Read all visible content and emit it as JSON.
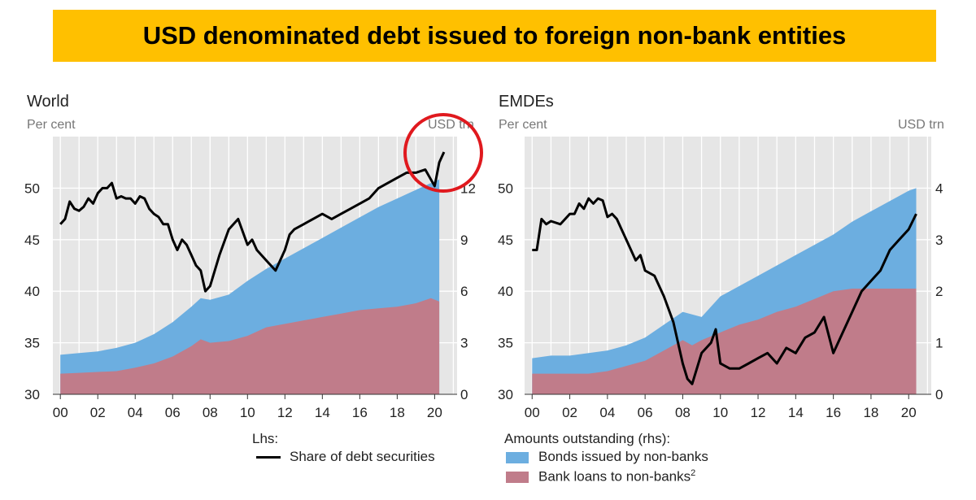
{
  "banner": {
    "title": "USD denominated debt issued to foreign non-bank entities"
  },
  "panels": {
    "world": {
      "title": "World",
      "lhs_unit": "Per cent",
      "rhs_unit": "USD trn"
    },
    "emdes": {
      "title": "EMDEs",
      "lhs_unit": "Per cent",
      "rhs_unit": "USD trn"
    }
  },
  "legend": {
    "lhs_header": "Lhs:",
    "line_label": "Share of debt securities",
    "rhs_header": "Amounts outstanding (rhs):",
    "bonds_label": "Bonds issued by non-banks",
    "loans_label": "Bank loans to non-banks",
    "loans_superscript": "2"
  },
  "colors": {
    "banner": "#FFC000",
    "bonds": "#6CAEE0",
    "loans": "#C07C8A",
    "line": "#000000",
    "circle": "#E0191E",
    "plot_bg": "#E6E6E6"
  },
  "chart_data": [
    {
      "type": "area",
      "title": "World",
      "ylabel_left": "Per cent",
      "ylabel_right": "USD trn",
      "x_ticks": [
        "00",
        "02",
        "04",
        "06",
        "08",
        "10",
        "12",
        "14",
        "16",
        "18",
        "20"
      ],
      "xlim": [
        1999.6,
        2021.2
      ],
      "ylim_left": [
        30,
        55
      ],
      "yticks_left": [
        30,
        35,
        40,
        45,
        50
      ],
      "ylim_right": [
        0,
        15
      ],
      "yticks_right": [
        0,
        3,
        6,
        9,
        12
      ],
      "grid": true,
      "annotation": "red circle highlighting latest line values",
      "series": [
        {
          "name": "Bank loans to non-banks",
          "axis": "right",
          "kind": "stacked_area",
          "x": [
            2000,
            2001,
            2002,
            2003,
            2004,
            2005,
            2006,
            2007,
            2007.5,
            2008,
            2009,
            2010,
            2011,
            2012,
            2013,
            2014,
            2015,
            2016,
            2017,
            2018,
            2019,
            2019.8,
            2020.25
          ],
          "y": [
            1.2,
            1.25,
            1.3,
            1.35,
            1.55,
            1.8,
            2.2,
            2.8,
            3.2,
            3.0,
            3.1,
            3.4,
            3.9,
            4.1,
            4.3,
            4.5,
            4.7,
            4.9,
            5.0,
            5.1,
            5.3,
            5.6,
            5.4
          ]
        },
        {
          "name": "Bonds issued by non-banks",
          "axis": "right",
          "kind": "stacked_area_total",
          "x": [
            2000,
            2001,
            2002,
            2003,
            2004,
            2005,
            2006,
            2007,
            2007.5,
            2008,
            2009,
            2010,
            2011,
            2012,
            2013,
            2014,
            2015,
            2016,
            2017,
            2018,
            2019,
            2019.8,
            2020.25
          ],
          "y": [
            2.3,
            2.4,
            2.5,
            2.7,
            3.0,
            3.5,
            4.2,
            5.1,
            5.6,
            5.5,
            5.8,
            6.6,
            7.3,
            7.9,
            8.5,
            9.1,
            9.7,
            10.3,
            10.9,
            11.4,
            11.9,
            12.3,
            12.5
          ]
        },
        {
          "name": "Share of debt securities",
          "axis": "left",
          "kind": "line",
          "x": [
            2000,
            2000.25,
            2000.5,
            2000.75,
            2001,
            2001.25,
            2001.5,
            2001.75,
            2002,
            2002.25,
            2002.5,
            2002.75,
            2003,
            2003.25,
            2003.5,
            2003.75,
            2004,
            2004.25,
            2004.5,
            2004.75,
            2005,
            2005.25,
            2005.5,
            2005.75,
            2006,
            2006.25,
            2006.5,
            2006.75,
            2007,
            2007.25,
            2007.5,
            2007.75,
            2008,
            2008.5,
            2009,
            2009.5,
            2010,
            2010.25,
            2010.5,
            2011,
            2011.5,
            2012,
            2012.25,
            2012.5,
            2013,
            2013.5,
            2014,
            2014.5,
            2015,
            2015.5,
            2016,
            2016.5,
            2017,
            2017.5,
            2018,
            2018.5,
            2019,
            2019.5,
            2019.75,
            2020,
            2020.25,
            2020.5
          ],
          "y": [
            46.5,
            47.0,
            48.7,
            48.0,
            47.8,
            48.2,
            49.0,
            48.5,
            49.5,
            50.0,
            50.0,
            50.5,
            49.0,
            49.2,
            49.0,
            49.0,
            48.5,
            49.2,
            49.0,
            48.0,
            47.5,
            47.2,
            46.5,
            46.5,
            45.0,
            44.0,
            45.0,
            44.5,
            43.5,
            42.5,
            42.0,
            40.0,
            40.5,
            43.5,
            46.0,
            47.0,
            44.5,
            45.0,
            44.0,
            43.0,
            42.0,
            44.0,
            45.5,
            46.0,
            46.5,
            47.0,
            47.5,
            47.0,
            47.5,
            48.0,
            48.5,
            49.0,
            50.0,
            50.5,
            51.0,
            51.5,
            51.5,
            51.8,
            51.0,
            50.2,
            52.5,
            53.5
          ]
        }
      ]
    },
    {
      "type": "area",
      "title": "EMDEs",
      "ylabel_left": "Per cent",
      "ylabel_right": "USD trn",
      "x_ticks": [
        "00",
        "02",
        "04",
        "06",
        "08",
        "10",
        "12",
        "14",
        "16",
        "18",
        "20"
      ],
      "xlim": [
        1999.6,
        2021.2
      ],
      "ylim_left": [
        30,
        55
      ],
      "yticks_left": [
        30,
        35,
        40,
        45,
        50
      ],
      "ylim_right": [
        0,
        5
      ],
      "yticks_right": [
        0,
        1,
        2,
        3,
        4
      ],
      "grid": true,
      "series": [
        {
          "name": "Bank loans to non-banks",
          "axis": "right",
          "kind": "stacked_area",
          "x": [
            2000,
            2001,
            2002,
            2003,
            2004,
            2005,
            2006,
            2007,
            2008,
            2008.5,
            2009,
            2010,
            2011,
            2012,
            2013,
            2014,
            2015,
            2016,
            2017,
            2018,
            2019,
            2020,
            2020.4
          ],
          "y": [
            0.4,
            0.4,
            0.4,
            0.4,
            0.45,
            0.55,
            0.65,
            0.85,
            1.05,
            0.95,
            1.05,
            1.2,
            1.35,
            1.45,
            1.6,
            1.7,
            1.85,
            2.0,
            2.05,
            2.05,
            2.05,
            2.05,
            2.05
          ]
        },
        {
          "name": "Bonds issued by non-banks",
          "axis": "right",
          "kind": "stacked_area_total",
          "x": [
            2000,
            2001,
            2002,
            2003,
            2004,
            2005,
            2006,
            2007,
            2008,
            2008.5,
            2009,
            2010,
            2011,
            2012,
            2013,
            2014,
            2015,
            2016,
            2017,
            2018,
            2019,
            2020,
            2020.4
          ],
          "y": [
            0.7,
            0.75,
            0.75,
            0.8,
            0.85,
            0.95,
            1.1,
            1.35,
            1.6,
            1.55,
            1.5,
            1.9,
            2.1,
            2.3,
            2.5,
            2.7,
            2.9,
            3.1,
            3.35,
            3.55,
            3.75,
            3.95,
            4.0
          ]
        },
        {
          "name": "Share of debt securities",
          "axis": "left",
          "kind": "line",
          "x": [
            2000,
            2000.25,
            2000.5,
            2000.75,
            2001,
            2001.5,
            2002,
            2002.25,
            2002.5,
            2002.75,
            2003,
            2003.25,
            2003.5,
            2003.75,
            2004,
            2004.25,
            2004.5,
            2004.75,
            2005,
            2005.25,
            2005.5,
            2005.75,
            2006,
            2006.5,
            2007,
            2007.5,
            2008,
            2008.25,
            2008.5,
            2009,
            2009.5,
            2009.75,
            2010,
            2010.5,
            2011,
            2011.5,
            2012,
            2012.5,
            2013,
            2013.5,
            2014,
            2014.5,
            2015,
            2015.5,
            2016,
            2016.5,
            2017,
            2017.5,
            2018,
            2018.5,
            2019,
            2019.5,
            2020,
            2020.4
          ],
          "y": [
            44.0,
            44.0,
            47.0,
            46.5,
            46.8,
            46.5,
            47.5,
            47.5,
            48.5,
            48.0,
            49.0,
            48.5,
            49.0,
            48.8,
            47.2,
            47.5,
            47.0,
            46.0,
            45.0,
            44.0,
            43.0,
            43.5,
            42.0,
            41.5,
            39.5,
            37.0,
            33.0,
            31.5,
            31.0,
            34.0,
            35.0,
            36.3,
            33.0,
            32.5,
            32.5,
            33.0,
            33.5,
            34.0,
            33.0,
            34.5,
            34.0,
            35.5,
            36.0,
            37.5,
            34.0,
            36.0,
            38.0,
            40.0,
            41.0,
            42.0,
            44.0,
            45.0,
            46.0,
            47.5
          ]
        }
      ]
    }
  ]
}
